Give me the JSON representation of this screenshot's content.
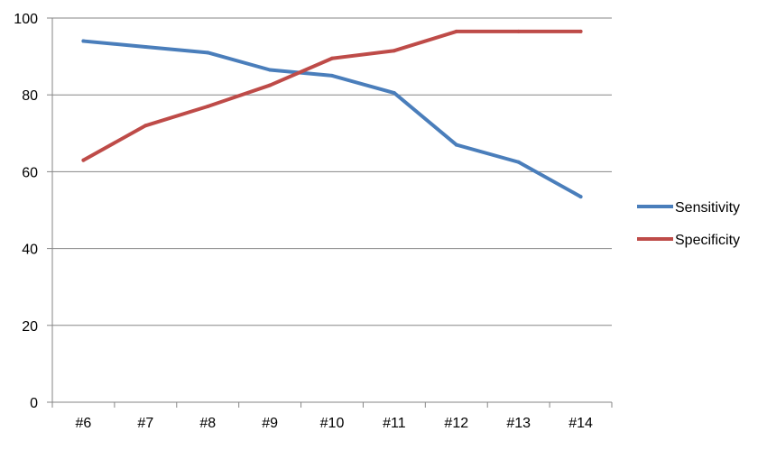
{
  "chart_data": {
    "type": "line",
    "categories": [
      "#6",
      "#7",
      "#8",
      "#9",
      "#10",
      "#11",
      "#12",
      "#13",
      "#14"
    ],
    "series": [
      {
        "name": "Sensitivity",
        "color": "#4a7ebb",
        "values": [
          94,
          92.5,
          91,
          86.5,
          85,
          80.5,
          67,
          62.5,
          53.5
        ]
      },
      {
        "name": "Specificity",
        "color": "#be4b48",
        "values": [
          63,
          72,
          77,
          82.5,
          89.5,
          91.5,
          96.5,
          96.5,
          96.5
        ]
      }
    ],
    "title": "",
    "xlabel": "",
    "ylabel": "",
    "ylim": [
      0,
      100
    ],
    "yticks": [
      "0",
      "20",
      "40",
      "60",
      "80",
      "100"
    ],
    "grid": true,
    "legend_position": "right"
  }
}
